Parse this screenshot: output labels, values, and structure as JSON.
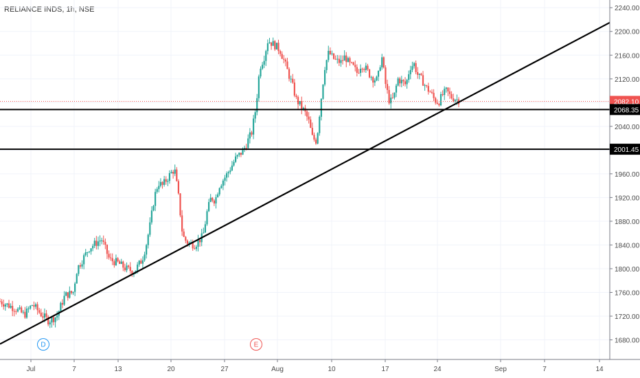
{
  "header": {
    "title": "RELIANCE INDS, 1h, NSE"
  },
  "colors": {
    "up": "#26a69a",
    "down": "#ef5350",
    "grid": "#f0f3fa",
    "last_price_line": "#ef5350",
    "drawing": "#000000",
    "event_d": "#2196f3",
    "event_e": "#ef5350"
  },
  "markers": {
    "dividend": "D",
    "earnings": "E"
  },
  "chart_data": {
    "type": "candlestick",
    "title": "RELIANCE INDS, 1h, NSE",
    "ylim": [
      1647,
      2253
    ],
    "y_ticks": [
      1680,
      1720,
      1760,
      1800,
      1840,
      1880,
      1920,
      1960,
      2000,
      2040,
      2080,
      2120,
      2160,
      2200,
      2240
    ],
    "y_tick_labels": [
      "1680.00",
      "1720.00",
      "1760.00",
      "1800.00",
      "1840.00",
      "1880.00",
      "1920.00",
      "1960.00",
      "2000.00",
      "2040.00",
      "2080.00",
      "2120.00",
      "2160.00",
      "2200.00",
      "2240.00"
    ],
    "x_ticks": [
      "Jul",
      "7",
      "13",
      "20",
      "27",
      "Aug",
      "10",
      "17",
      "24",
      "Sep",
      "7",
      "14"
    ],
    "last_price": {
      "value": 2082.1,
      "label": "2082.10"
    },
    "horizontal_levels": [
      {
        "value": 2068.35,
        "label": "2068.35"
      },
      {
        "value": 2001.45,
        "label": "2001.45"
      }
    ],
    "trendline": {
      "from": 1673,
      "to": 2215
    },
    "price_path": [
      [
        0,
        1745
      ],
      [
        4,
        1732
      ],
      [
        6,
        1722
      ],
      [
        8,
        1740
      ],
      [
        10,
        1724
      ],
      [
        12,
        1712
      ],
      [
        14,
        1720
      ],
      [
        16,
        1755
      ],
      [
        18,
        1760
      ],
      [
        19,
        1800
      ],
      [
        22,
        1835
      ],
      [
        25,
        1850
      ],
      [
        27,
        1815
      ],
      [
        29,
        1810
      ],
      [
        31,
        1800
      ],
      [
        33,
        1795
      ],
      [
        35,
        1815
      ],
      [
        36,
        1840
      ],
      [
        37,
        1875
      ],
      [
        38,
        1920
      ],
      [
        39,
        1945
      ],
      [
        40,
        1940
      ],
      [
        41,
        1950
      ],
      [
        42,
        1960
      ],
      [
        43,
        1968
      ],
      [
        44,
        1920
      ],
      [
        45,
        1855
      ],
      [
        46,
        1845
      ],
      [
        48,
        1840
      ],
      [
        50,
        1855
      ],
      [
        51,
        1895
      ],
      [
        52,
        1920
      ],
      [
        53,
        1915
      ],
      [
        54,
        1940
      ],
      [
        56,
        1960
      ],
      [
        58,
        1985
      ],
      [
        60,
        2000
      ],
      [
        62,
        2030
      ],
      [
        63,
        2070
      ],
      [
        64,
        2140
      ],
      [
        65,
        2155
      ],
      [
        66,
        2185
      ],
      [
        67,
        2180
      ],
      [
        68,
        2175
      ],
      [
        69,
        2168
      ],
      [
        70,
        2150
      ],
      [
        71,
        2130
      ],
      [
        72,
        2110
      ],
      [
        73,
        2085
      ],
      [
        74,
        2075
      ],
      [
        75,
        2065
      ],
      [
        76,
        2050
      ],
      [
        77,
        2020
      ],
      [
        78,
        2015
      ],
      [
        79,
        2080
      ],
      [
        80,
        2140
      ],
      [
        81,
        2165
      ],
      [
        82,
        2155
      ],
      [
        83,
        2150
      ],
      [
        84,
        2148
      ],
      [
        85,
        2158
      ],
      [
        86,
        2145
      ],
      [
        87,
        2140
      ],
      [
        88,
        2130
      ],
      [
        89,
        2145
      ],
      [
        90,
        2138
      ],
      [
        91,
        2128
      ],
      [
        92,
        2120
      ],
      [
        93,
        2118
      ],
      [
        94,
        2160
      ],
      [
        95,
        2110
      ],
      [
        96,
        2080
      ],
      [
        97,
        2088
      ],
      [
        98,
        2120
      ],
      [
        99,
        2115
      ],
      [
        100,
        2110
      ],
      [
        101,
        2140
      ],
      [
        102,
        2145
      ],
      [
        103,
        2125
      ],
      [
        104,
        2118
      ],
      [
        105,
        2105
      ],
      [
        106,
        2098
      ],
      [
        107,
        2085
      ],
      [
        108,
        2080
      ],
      [
        109,
        2093
      ],
      [
        110,
        2100
      ],
      [
        111,
        2090
      ],
      [
        112,
        2087
      ],
      [
        113,
        2084
      ]
    ],
    "events": [
      {
        "label": "D",
        "x": 63,
        "price": 1670
      },
      {
        "label": "E",
        "x": 373,
        "price": 1670
      }
    ]
  }
}
